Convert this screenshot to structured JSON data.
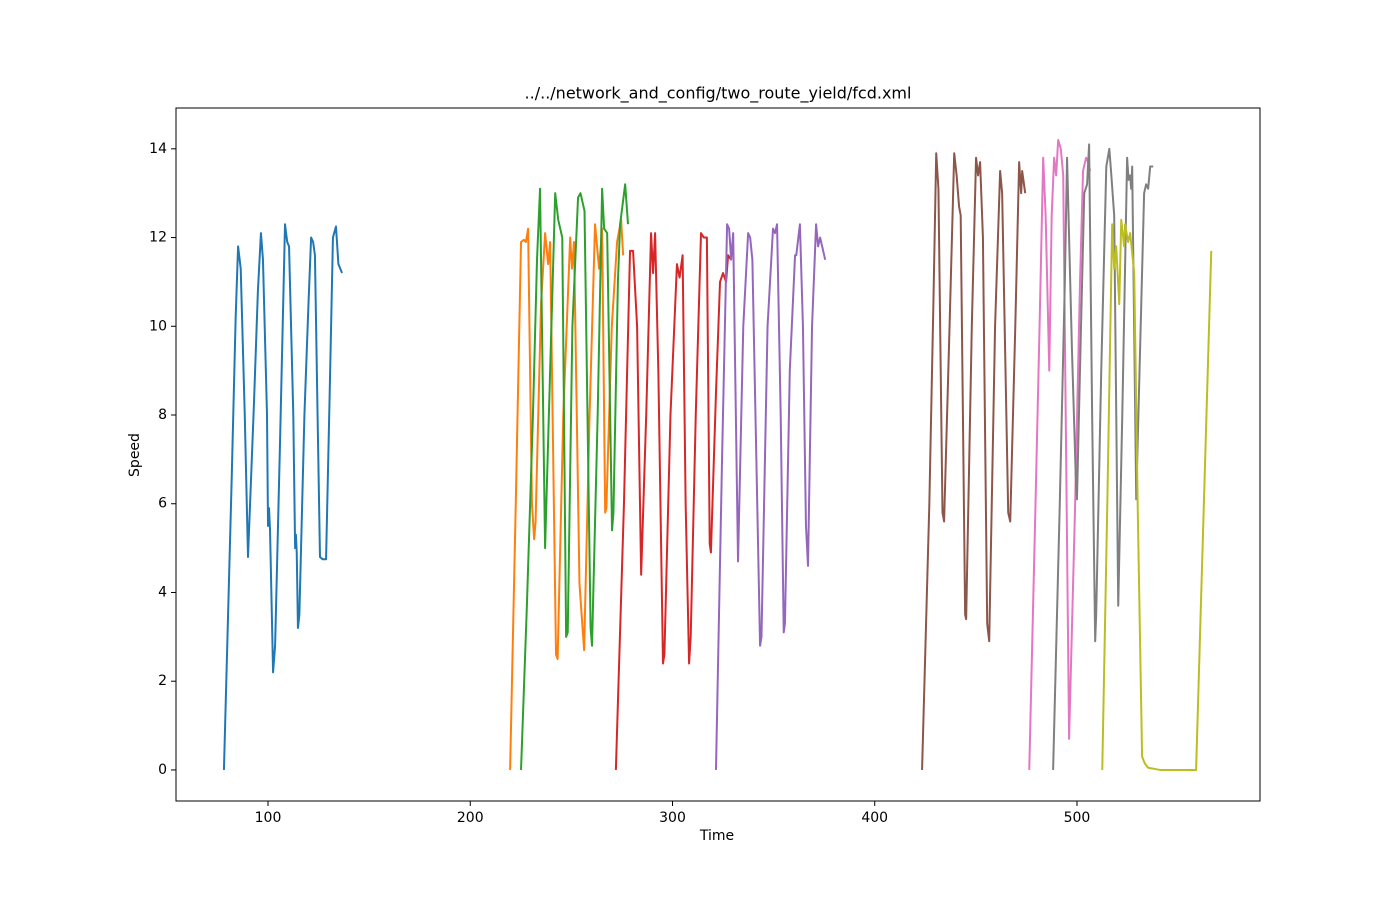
{
  "chart_data": {
    "type": "line",
    "title": "../../network_and_config/two_route_yield/fcd.xml",
    "x_label": "Time",
    "y_label": "Speed",
    "xlim": [
      54.5,
      590.5
    ],
    "ylim": [
      -0.7,
      14.92
    ],
    "xticks": [
      100,
      200,
      300,
      400,
      500
    ],
    "yticks": [
      0,
      2,
      4,
      6,
      8,
      10,
      12,
      14
    ],
    "series": [
      {
        "color": "#1f77b4",
        "x": [
          78.2,
          82,
          84,
          85.2,
          86.5,
          88.5,
          90.1,
          93,
          95,
          96.5,
          97.5,
          99.5,
          100,
          100.5,
          101,
          102.5,
          103.5,
          106,
          108.4,
          109.5,
          110.4,
          112.5,
          113.4,
          113.8,
          114.2,
          114.8,
          115.5,
          118,
          120,
          121.3,
          122.3,
          123.2,
          124.5,
          125.7,
          127,
          128.7,
          130.5,
          132.1,
          133.6,
          134.8,
          136.6
        ],
        "values": [
          0,
          6.5,
          10.2,
          11.8,
          11.3,
          8,
          4.8,
          8.2,
          10.8,
          12.1,
          11.5,
          8,
          5.5,
          5.9,
          5.4,
          2.2,
          2.8,
          7.5,
          12.3,
          11.9,
          11.8,
          8,
          5.0,
          5.3,
          4.9,
          3.2,
          3.5,
          8,
          10.5,
          12.0,
          11.9,
          11.6,
          8,
          4.8,
          4.75,
          4.75,
          8.5,
          12.0,
          12.25,
          11.4,
          11.2
        ]
      },
      {
        "color": "#ff7f0e",
        "x": [
          219.7,
          222.5,
          225.1,
          226.5,
          227.5,
          228.6,
          230.5,
          231.6,
          232.3,
          235,
          237,
          238.5,
          239.5,
          242.4,
          243.2,
          246,
          249.4,
          250.3,
          251.3,
          254,
          256.3,
          259,
          261.7,
          263.7,
          265.2,
          266.7,
          267.3,
          270,
          272.6,
          274.6,
          275.6
        ],
        "values": [
          0,
          6,
          11.9,
          11.95,
          11.9,
          12.2,
          6,
          5.2,
          5.6,
          10.5,
          12.1,
          11.4,
          11.9,
          2.6,
          2.5,
          8,
          12.0,
          11.3,
          11.9,
          4.2,
          2.7,
          8,
          12.3,
          11.3,
          12.2,
          5.8,
          5.9,
          10,
          11.9,
          12.4,
          11.6
        ]
      },
      {
        "color": "#2ca02c",
        "x": [
          225.1,
          228,
          231,
          233,
          234.5,
          237,
          239.5,
          242,
          243.5,
          245.5,
          247.4,
          248.2,
          250.5,
          253.3,
          254.5,
          256.5,
          259.5,
          260.2,
          263,
          265.2,
          266.2,
          267.7,
          270.1,
          270.8,
          273,
          274.1,
          276.6,
          278
        ],
        "values": [
          0,
          3.7,
          8,
          11.5,
          13.1,
          5.0,
          9,
          13.0,
          12.4,
          12.0,
          3.0,
          3.1,
          10,
          12.9,
          13.0,
          12.6,
          3.2,
          2.8,
          8,
          13.1,
          12.2,
          12.1,
          5.4,
          5.8,
          11,
          12.3,
          13.2,
          12.3
        ]
      },
      {
        "color": "#d62728",
        "x": [
          272,
          276,
          279,
          280.5,
          282.5,
          284.5,
          287,
          289.4,
          290.4,
          291.4,
          293,
          295.3,
          296,
          299,
          302.2,
          303.5,
          305,
          306.5,
          308.2,
          309,
          311.5,
          314.1,
          315.5,
          317,
          318.4,
          319,
          321.5,
          323.5,
          325,
          326.5,
          327.5,
          329
        ],
        "values": [
          0,
          6,
          11.7,
          11.7,
          10,
          4.4,
          8,
          12.1,
          11.2,
          12.1,
          9,
          2.4,
          2.6,
          8,
          11.4,
          11.1,
          11.6,
          6,
          2.4,
          3.0,
          8,
          12.1,
          12.0,
          12.0,
          5.1,
          4.9,
          8.5,
          11.0,
          11.2,
          11.0,
          11.6,
          11.5
        ]
      },
      {
        "color": "#9467bd",
        "x": [
          321.5,
          324.5,
          327,
          328,
          329,
          330,
          332.4,
          335,
          337.4,
          338.4,
          339.5,
          343.3,
          344,
          347,
          349.7,
          350.7,
          351.7,
          353.5,
          355,
          355.6,
          358,
          360.6,
          361.2,
          363,
          364.5,
          366,
          367,
          369,
          371,
          372,
          373,
          375.5
        ],
        "values": [
          0,
          7,
          12.3,
          12.2,
          11.5,
          12.1,
          4.7,
          10,
          12.1,
          12.0,
          11.5,
          2.8,
          3.0,
          10,
          12.2,
          12.1,
          12.3,
          8,
          3.1,
          3.3,
          9,
          11.6,
          11.6,
          12.3,
          10,
          5.5,
          4.6,
          10,
          12.3,
          11.8,
          12.0,
          11.5
        ]
      },
      {
        "color": "#8c564b",
        "x": [
          423.4,
          427,
          429,
          430.4,
          431.5,
          433.5,
          434.3,
          437,
          439.3,
          440.5,
          441.7,
          442.5,
          444.7,
          445.2,
          448,
          450.1,
          451.1,
          452.1,
          453.5,
          455.6,
          456.6,
          459.5,
          462,
          463,
          466,
          467,
          469.5,
          471.4,
          472.4,
          472.9,
          474.4
        ],
        "values": [
          0,
          6,
          10.5,
          13.9,
          13.1,
          5.8,
          5.6,
          10,
          13.9,
          13.4,
          12.7,
          12.5,
          3.5,
          3.4,
          10,
          13.8,
          13.4,
          13.7,
          12,
          3.3,
          2.9,
          10,
          13.5,
          13.0,
          5.8,
          5.6,
          10,
          13.7,
          13.0,
          13.5,
          13.0
        ]
      },
      {
        "color": "#e377c2",
        "x": [
          476.4,
          479.5,
          481.5,
          483.3,
          484.5,
          486.3,
          487.5,
          488.7,
          489.7,
          490.7,
          492,
          493.2,
          496.1,
          499.1,
          501.5,
          503,
          504.5,
          505.5,
          506.5
        ],
        "values": [
          0,
          6,
          10,
          13.8,
          12.5,
          9.0,
          12.5,
          13.8,
          13.4,
          14.2,
          14.0,
          13.4,
          0.7,
          6,
          11,
          13.5,
          13.8,
          13.7,
          13.5
        ]
      },
      {
        "color": "#7f7f7f",
        "x": [
          488.2,
          491.5,
          494,
          495.1,
          495.6,
          497.5,
          499.6,
          500,
          502,
          503.6,
          505,
          506,
          507.5,
          509,
          509.5,
          512,
          514.5,
          516,
          517,
          518.4,
          520.4,
          522.4,
          524.8,
          525.5,
          526.3,
          526.8,
          527.3,
          529.3,
          531.5,
          533.2,
          534.2,
          535.2,
          536.2,
          537.7
        ],
        "values": [
          0,
          6,
          11,
          13.8,
          12.9,
          9.5,
          6.3,
          6.1,
          10,
          13.0,
          13.2,
          14.1,
          8,
          2.9,
          3.5,
          9,
          13.6,
          14.0,
          13.4,
          12.5,
          3.7,
          8,
          13.8,
          13.3,
          13.4,
          13.1,
          13.6,
          6.1,
          10,
          13.0,
          13.2,
          13.1,
          13.6,
          13.6
        ]
      },
      {
        "color": "#bcbd22",
        "x": [
          512.5,
          515,
          517.4,
          518.4,
          519.4,
          520.9,
          521.9,
          523.3,
          523.8,
          525.3,
          526.3,
          528.3,
          530,
          532.2,
          533.5,
          535.2,
          541.1,
          558.9,
          566.4
        ],
        "values": [
          0,
          6,
          12.3,
          11.3,
          11.8,
          10.5,
          12.4,
          11.8,
          12.3,
          11.9,
          12.1,
          11.2,
          6,
          0.3,
          0.15,
          0.05,
          0,
          0,
          11.7
        ]
      }
    ]
  }
}
